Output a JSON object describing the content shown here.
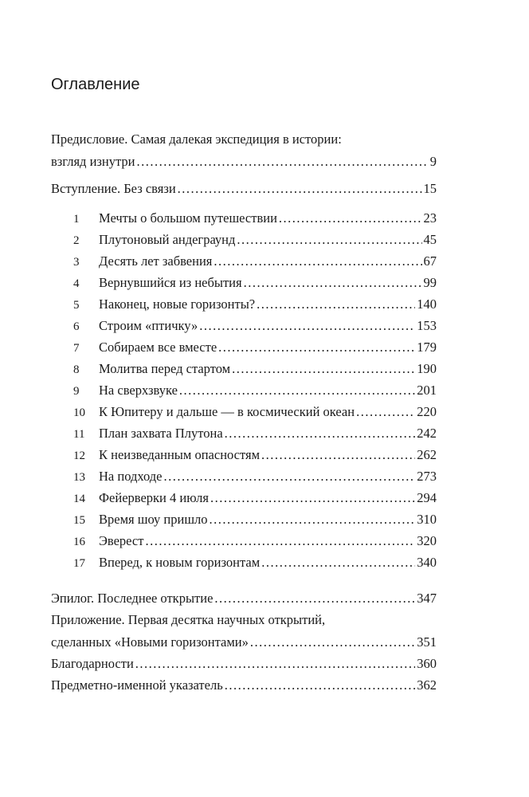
{
  "title": "Оглавление",
  "front_matter": [
    {
      "title_line1": "Предисловие. Самая далекая экспедиция в истории:",
      "title_line2": "взгляд изнутри",
      "page": "9"
    },
    {
      "title": "Вступление. Без связи",
      "page": "15"
    }
  ],
  "chapters": [
    {
      "number": "1",
      "title": "Мечты о большом путешествии",
      "page": "23"
    },
    {
      "number": "2",
      "title": "Плутоновый андеграунд",
      "page": "45"
    },
    {
      "number": "3",
      "title": "Десять лет забвения",
      "page": "67"
    },
    {
      "number": "4",
      "title": "Вернувшийся из небытия",
      "page": "99"
    },
    {
      "number": "5",
      "title": "Наконец, новые горизонты?",
      "page": "140"
    },
    {
      "number": "6",
      "title": "Строим «птичку»",
      "page": "153"
    },
    {
      "number": "7",
      "title": "Собираем все вместе",
      "page": "179"
    },
    {
      "number": "8",
      "title": "Молитва перед стартом",
      "page": "190"
    },
    {
      "number": "9",
      "title": "На сверхзвуке",
      "page": "201"
    },
    {
      "number": "10",
      "title": "К Юпитеру и дальше — в космический океан",
      "page": "220"
    },
    {
      "number": "11",
      "title": "План захвата Плутона",
      "page": "242"
    },
    {
      "number": "12",
      "title": "К неизведанным опасностям",
      "page": "262"
    },
    {
      "number": "13",
      "title": "На подходе",
      "page": "273"
    },
    {
      "number": "14",
      "title": "Фейерверки 4 июля",
      "page": "294"
    },
    {
      "number": "15",
      "title": "Время шоу пришло",
      "page": "310"
    },
    {
      "number": "16",
      "title": "Эверест",
      "page": "320"
    },
    {
      "number": "17",
      "title": "Вперед, к новым горизонтам",
      "page": "340"
    }
  ],
  "back_matter": [
    {
      "title": "Эпилог. Последнее открытие",
      "page": "347"
    },
    {
      "title_line1": "Приложение. Первая десятка научных открытий,",
      "title_line2": "сделанных «Новыми горизонтами»",
      "page": "351"
    },
    {
      "title": "Благодарности",
      "page": "360"
    },
    {
      "title": "Предметно-именной указатель",
      "page": "362"
    }
  ]
}
